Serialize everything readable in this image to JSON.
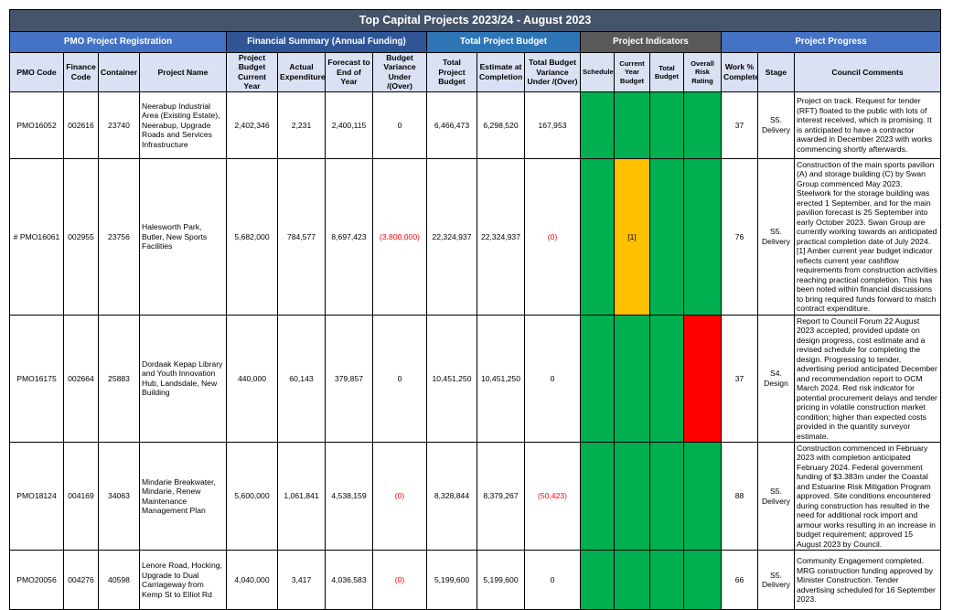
{
  "title": "Top Capital Projects 2023/24 - August 2023",
  "groups": {
    "registration": "PMO Project Registration",
    "financial": "Financial Summary (Annual Funding)",
    "total_budget": "Total Project Budget",
    "indicators": "Project Indicators",
    "progress": "Project Progress"
  },
  "columns": {
    "pmo_code": "PMO Code",
    "finance_code": "Finance Code",
    "container": "Container",
    "project_name": "Project Name",
    "project_budget": "Project Budget Current Year",
    "actual_expenditure": "Actual Expenditure",
    "forecast": "Forecast to End of Year",
    "budget_variance": "Budget Variance Under /(Over)",
    "total_budget": "Total Project Budget",
    "estimate": "Estimate at Completion",
    "total_variance": "Total Budget Variance Under /(Over)",
    "schedule": "Schedule",
    "current_year_budget": "Current Year Budget",
    "total_budget_ind": "Total Budget",
    "overall_risk": "Overall Risk Rating",
    "work_pct": "Work % Complete",
    "stage": "Stage",
    "comments": "Council Comments"
  },
  "indicator_colors": {
    "green": "#00b050",
    "amber": "#ffc000",
    "red": "#ff0000"
  },
  "rows": [
    {
      "pmo_code": "PMO16052",
      "finance_code": "002616",
      "container": "23740",
      "project_name": "Neerabup Industrial Area (Existing Estate), Neerabup, Upgrade Roads and Services Infrastructure",
      "project_budget": "2,402,346",
      "actual_expenditure": "2,231",
      "forecast": "2,400,115",
      "budget_variance": "0",
      "total_budget": "6,466,473",
      "estimate": "6,298,520",
      "total_variance": "167,953",
      "schedule": "green",
      "current_year_budget": "green",
      "current_year_budget_note": "",
      "total_budget_ind": "green",
      "overall_risk": "green",
      "work_pct": "37",
      "stage": "S5. Delivery",
      "comments": "Project on track. Request for tender (RFT) floated to the public with lots of interest received, which is promising.  It is anticipated to have a contractor awarded in December 2023 with works commencing shortly afterwards."
    },
    {
      "pmo_code": "# PMO16061",
      "finance_code": "002955",
      "container": "23756",
      "project_name": "Halesworth Park, Butler, New Sports Facilities",
      "project_budget": "5,682,000",
      "actual_expenditure": "784,577",
      "forecast": "8,697,423",
      "budget_variance": "(3,800,000)",
      "total_budget": "22,324,937",
      "estimate": "22,324,937",
      "total_variance": "(0)",
      "schedule": "green",
      "current_year_budget": "amber",
      "current_year_budget_note": "[1]",
      "total_budget_ind": "green",
      "overall_risk": "green",
      "work_pct": "76",
      "stage": "S5. Delivery",
      "comments": "Construction of the main sports pavilion (A) and storage building (C) by Swan Group commenced May 2023. Steelwork for the storage building was erected 1 September, and for the main pavilion forecast is 25 September into early October 2023.  Swan Group are currently working towards an anticipated practical completion date of July 2024. [1] Amber current year budget indicator reflects current year cashflow requirements from construction activities reaching practical completion. This has been noted within financial discussions to bring required funds forward to match contract expenditure."
    },
    {
      "pmo_code": "PMO16175",
      "finance_code": "002664",
      "container": "25883",
      "project_name": "Dordaak Kepap Library and Youth Innovation Hub, Landsdale, New Building",
      "project_budget": "440,000",
      "actual_expenditure": "60,143",
      "forecast": "379,857",
      "budget_variance": "0",
      "total_budget": "10,451,250",
      "estimate": "10,451,250",
      "total_variance": "0",
      "schedule": "green",
      "current_year_budget": "green",
      "current_year_budget_note": "",
      "total_budget_ind": "green",
      "overall_risk": "red",
      "work_pct": "37",
      "stage": "S4. Design",
      "comments": "Report to Council Forum 22 August 2023 accepted; provided update on design progress, cost estimate and a revised schedule for completing the design. Progressing to tender, advertising period anticipated December and recommendation report to OCM March 2024. Red risk indicator for potential procurement delays and tender pricing in volatile construction market condition; higher than expected costs provided in the quantity surveyor estimate."
    },
    {
      "pmo_code": "PMO18124",
      "finance_code": "004169",
      "container": "34063",
      "project_name": "Mindarie Breakwater, Mindarie, Renew Maintenance Management Plan",
      "project_budget": "5,600,000",
      "actual_expenditure": "1,061,841",
      "forecast": "4,538,159",
      "budget_variance": "(0)",
      "total_budget": "8,328,844",
      "estimate": "8,379,267",
      "total_variance": "(50,423)",
      "schedule": "green",
      "current_year_budget": "green",
      "current_year_budget_note": "",
      "total_budget_ind": "green",
      "overall_risk": "green",
      "work_pct": "88",
      "stage": "S5. Delivery",
      "comments": "Construction commenced in February 2023 with completion anticipated February 2024. Federal government funding of $3.383m under the Coastal and Estuarine Risk Mitigation Program approved. Site conditions encountered during construction has resulted in the need for additional rock import and armour works resulting in an increase in budget requirement; approved 15 August 2023 by Council."
    },
    {
      "pmo_code": "PMO20056",
      "finance_code": "004276",
      "container": "40598",
      "project_name": "Lenore Road, Hocking, Upgrade to Dual Carriageway from Kemp St to Elliot Rd",
      "project_budget": "4,040,000",
      "actual_expenditure": "3,417",
      "forecast": "4,036,583",
      "budget_variance": "(0)",
      "total_budget": "5,199,600",
      "estimate": "5,199,600",
      "total_variance": "0",
      "schedule": "green",
      "current_year_budget": "green",
      "current_year_budget_note": "",
      "total_budget_ind": "green",
      "overall_risk": "green",
      "work_pct": "66",
      "stage": "S5. Delivery",
      "comments": "Community Engagement completed. MRG construction funding approved by Minister Construction. Tender advertising scheduled for 16 September 2023."
    }
  ]
}
